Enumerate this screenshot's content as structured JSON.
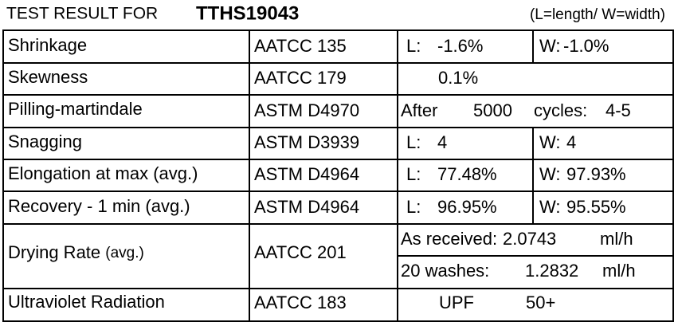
{
  "header": {
    "title": "TEST RESULT FOR",
    "id": "TTHS19043",
    "note": "(L=length/ W=width)"
  },
  "table": {
    "rows": [
      {
        "property": "Shrinkage",
        "method": "AATCC 135",
        "l": [
          "L:",
          "-1.6%"
        ],
        "w": [
          "W:",
          "-1.0%"
        ]
      },
      {
        "property": "Skewness",
        "method": "AATCC 179",
        "result": "0.1%"
      },
      {
        "property": "Pilling-martindale",
        "method": "ASTM D4970",
        "result": [
          "After",
          "5000",
          "cycles:",
          "4-5"
        ]
      },
      {
        "property": "Snagging",
        "method": "ASTM D3939",
        "l": [
          "L:",
          "4"
        ],
        "w": [
          "W:",
          "4"
        ]
      },
      {
        "property": "Elongation at max (avg.)",
        "method": "ASTM D4964",
        "l": [
          "L:",
          "77.48%"
        ],
        "w": [
          "W:",
          "97.93%"
        ]
      },
      {
        "property": "Recovery - 1 min (avg.)",
        "method": "ASTM D4964",
        "l": [
          "L:",
          "96.95%"
        ],
        "w": [
          "W:",
          "95.55%"
        ]
      },
      {
        "property": [
          "Drying Rate",
          "(avg.)"
        ],
        "method": "AATCC 201",
        "results": [
          [
            "As received:",
            "2.0743",
            "ml/h"
          ],
          [
            "20 washes:",
            "1.2832",
            "ml/h"
          ]
        ]
      },
      {
        "property": "Ultraviolet Radiation",
        "method": "AATCC 183",
        "result": [
          "UPF",
          "50+"
        ]
      }
    ]
  }
}
